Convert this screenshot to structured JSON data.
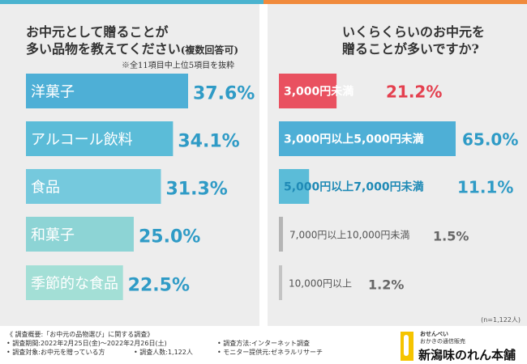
{
  "chart_data": [
    {
      "type": "bar",
      "orientation": "horizontal",
      "title_line1": "お中元として贈ることが",
      "title_line2": "多い品物を教えてください",
      "title_suffix": "(複数回答可)",
      "note": "※全11項目中上位5項目を抜粋",
      "categories": [
        "洋菓子",
        "アルコール飲料",
        "食品",
        "和菓子",
        "季節的な食品"
      ],
      "values": [
        37.6,
        34.1,
        31.3,
        25.0,
        22.5
      ],
      "labels": [
        "37.6%",
        "34.1%",
        "31.3%",
        "25.0%",
        "22.5%"
      ],
      "colors": [
        "#4eafd6",
        "#5bbcd8",
        "#75c9dd",
        "#8dd4d5",
        "#a3dfd6"
      ],
      "xlim": [
        0,
        37.6
      ]
    },
    {
      "type": "bar",
      "orientation": "horizontal",
      "title_line1": "いくらくらいのお中元を",
      "title_line2": "贈ることが多いですか?",
      "categories": [
        "3,000円未満",
        "3,000円以上5,000円未満",
        "5,000円以上7,000円未満",
        "7,000円以上10,000円未満",
        "10,000円以上"
      ],
      "values": [
        21.2,
        65.0,
        11.1,
        1.5,
        1.2
      ],
      "labels": [
        "21.2%",
        "65.0%",
        "11.1%",
        "1.5%",
        "1.2%"
      ],
      "colors": [
        "#e95160",
        "#4eafd6",
        "#5bbcd8",
        "#b5b5b5",
        "#c4c4c4"
      ],
      "xlim": [
        0,
        65.0
      ]
    }
  ],
  "sample_note": "(n=1,122人)",
  "footer": {
    "overview": "《 調査概要:「お中元の品物選び」に関する調査》",
    "period": "• 調査期間:2022年2月25日(金)〜2022年2月26日(土)",
    "target": "• 調査対象:お中元を贈っている方",
    "count": "• 調査人数:1,122人",
    "method": "• 調査方法:インターネット調査",
    "provider": "• モニター提供元:ゼネラルリサーチ"
  },
  "logo": {
    "sub1": "おせんべい",
    "sub2": "おかきの通信販売",
    "name": "新潟味のれん本舗"
  }
}
